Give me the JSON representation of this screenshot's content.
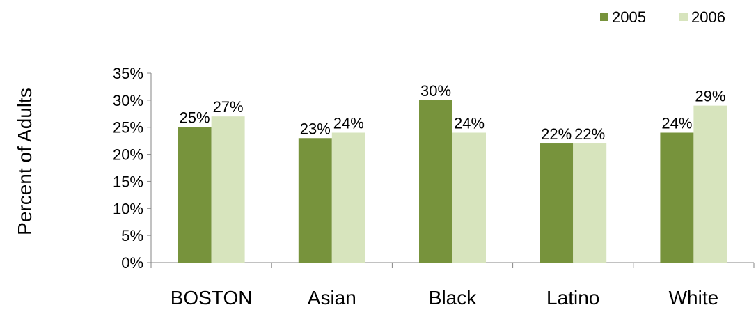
{
  "chart_data": {
    "type": "bar",
    "title": "",
    "xlabel": "",
    "ylabel": "Percent of Adults",
    "categories": [
      "BOSTON",
      "Asian",
      "Black",
      "Latino",
      "White"
    ],
    "series": [
      {
        "name": "2005",
        "color": "#77933c",
        "values": [
          25,
          23,
          30,
          22,
          24
        ],
        "labels": [
          "25%",
          "23%",
          "30%",
          "22%",
          "24%"
        ]
      },
      {
        "name": "2006",
        "color": "#d7e4bd",
        "values": [
          27,
          24,
          24,
          22,
          29
        ],
        "labels": [
          "27%",
          "24%",
          "24%",
          "22%",
          "29%"
        ]
      }
    ],
    "ylim": [
      0,
      35
    ],
    "yticks": [
      "0%",
      "5%",
      "10%",
      "15%",
      "20%",
      "25%",
      "30%",
      "35%"
    ],
    "grid": false,
    "legend_position": "top-right"
  }
}
